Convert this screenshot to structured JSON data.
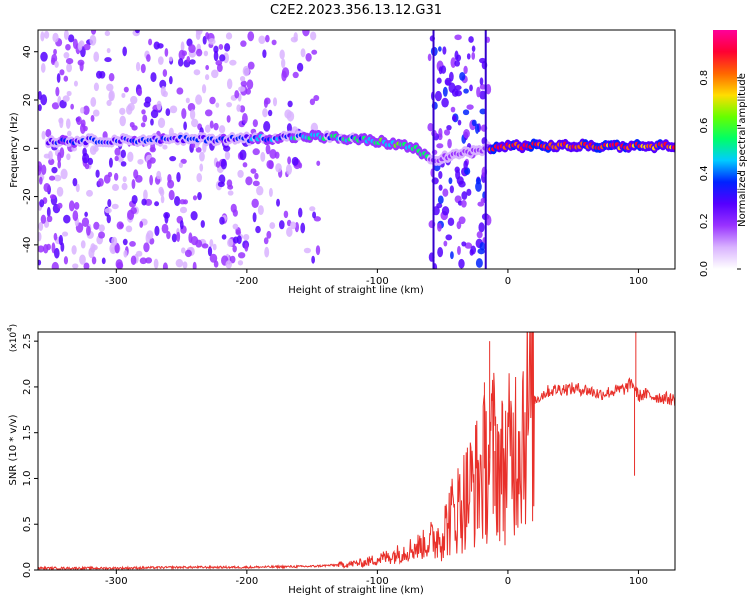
{
  "title": "C2E2.2023.356.13.12.G31",
  "chart_data": [
    {
      "type": "heatmap",
      "xlabel": "Height of straight line (km)",
      "ylabel": "Frequency (Hz)",
      "xlim": [
        -360,
        128
      ],
      "ylim": [
        -50,
        49
      ],
      "xticks": [
        -300,
        -200,
        -100,
        0,
        100
      ],
      "yticks": [
        -40,
        -20,
        0,
        20,
        40
      ],
      "colorbar": {
        "label": "Normalized spectral amplitude",
        "ticks": [
          "0.0",
          "0.2",
          "0.4",
          "0.6",
          "0.8"
        ],
        "range": [
          0,
          1
        ],
        "colormap": [
          "#ffffff",
          "#d9b3ff",
          "#9933ff",
          "#5500ff",
          "#0022ff",
          "#00ccff",
          "#00ff66",
          "#66ff00",
          "#ffdd00",
          "#ff6600",
          "#ff0033",
          "#ff0099"
        ]
      },
      "ridge": [
        {
          "x": -350,
          "freq": 3
        },
        {
          "x": -200,
          "freq": 4
        },
        {
          "x": -150,
          "freq": 5
        },
        {
          "x": -100,
          "freq": 3
        },
        {
          "x": -70,
          "freq": 0
        },
        {
          "x": -60,
          "freq": -5
        },
        {
          "x": -15,
          "freq": 0
        },
        {
          "x": 0,
          "freq": 1
        },
        {
          "x": 128,
          "freq": 1
        }
      ],
      "grid": false
    },
    {
      "type": "line",
      "xlabel": "Height of straight line (km)",
      "ylabel": "SNR (10 * v/v)",
      "y_multiplier_label": "(x10",
      "y_multiplier_exp": "4",
      "y_multiplier_close": ")",
      "xlim": [
        -360,
        128
      ],
      "ylim": [
        0,
        2.6
      ],
      "xticks": [
        -300,
        -200,
        -100,
        0,
        100
      ],
      "yticks": [
        "0.0",
        "0.5",
        "1.0",
        "1.5",
        "2.0",
        "2.5"
      ],
      "line_color": "#e8302a",
      "series": [
        {
          "x": [
            -360,
            -300,
            -250,
            -200,
            -150,
            -125,
            -110,
            -100,
            -90,
            -80,
            -70,
            -60,
            -50,
            -45,
            -40,
            -35,
            -30,
            -25,
            -20,
            -15,
            -10,
            -5,
            0,
            5,
            10,
            15,
            20,
            25,
            30,
            40,
            50,
            60,
            70,
            80,
            90,
            95,
            100,
            105,
            110,
            120,
            128
          ],
          "values": [
            0.02,
            0.02,
            0.03,
            0.03,
            0.04,
            0.06,
            0.08,
            0.12,
            0.15,
            0.2,
            0.25,
            0.3,
            0.4,
            0.55,
            0.65,
            0.75,
            0.85,
            0.95,
            1.05,
            1.2,
            1.3,
            1.1,
            1.2,
            1.35,
            1.55,
            1.75,
            1.85,
            1.9,
            1.95,
            1.98,
            1.98,
            1.97,
            1.92,
            1.95,
            1.98,
            2.05,
            1.9,
            1.92,
            1.9,
            1.88,
            1.86
          ]
        }
      ],
      "spikes": [
        {
          "x": -14,
          "value": 2.5
        },
        {
          "x": -18,
          "value": 2.05
        },
        {
          "x": 98,
          "value": 2.6
        },
        {
          "x": 97,
          "value": 1.03
        },
        {
          "x": -10,
          "value": 0.7
        }
      ],
      "grid": false
    }
  ]
}
